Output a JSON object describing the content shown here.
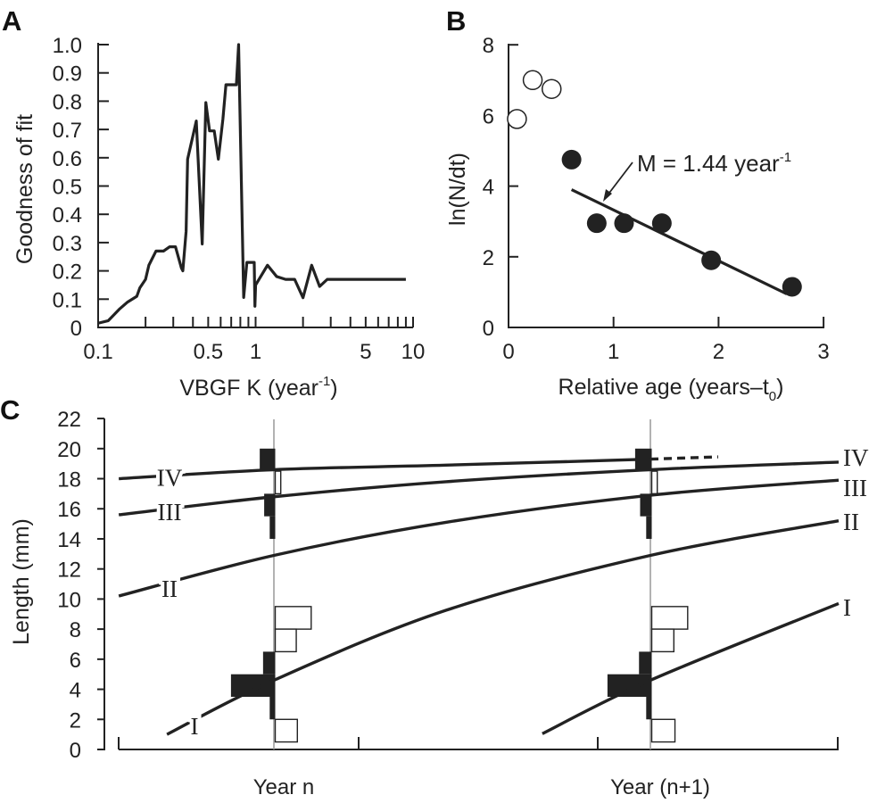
{
  "panel_labels": [
    "A",
    "B",
    "C"
  ],
  "chart_data": [
    {
      "panel": "A",
      "type": "line",
      "xlabel": "VBGF K (year",
      "xlabel_sup": "-1",
      "xlabel_end": ")",
      "ylabel": "Goodness of fit",
      "xscale": "log",
      "xlim": [
        0.1,
        10
      ],
      "ylim": [
        0,
        1.0
      ],
      "xtick_labels": [
        "0.1",
        "0.5",
        "1",
        "5",
        "10"
      ],
      "xtick_values": [
        0.1,
        0.5,
        1,
        5,
        10
      ],
      "ytick_labels": [
        "0",
        "0.1",
        "0.2",
        "0.3",
        "0.4",
        "0.5",
        "0.6",
        "0.7",
        "0.8",
        "0.9",
        "1.0"
      ],
      "ytick_values": [
        0,
        0.1,
        0.2,
        0.3,
        0.4,
        0.5,
        0.6,
        0.7,
        0.8,
        0.9,
        1.0
      ],
      "grid": false,
      "line_color": "#222222",
      "points": [
        [
          0.1,
          0.015
        ],
        [
          0.116,
          0.024
        ],
        [
          0.136,
          0.064
        ],
        [
          0.154,
          0.09
        ],
        [
          0.176,
          0.11
        ],
        [
          0.184,
          0.14
        ],
        [
          0.2,
          0.17
        ],
        [
          0.21,
          0.22
        ],
        [
          0.233,
          0.27
        ],
        [
          0.26,
          0.27
        ],
        [
          0.284,
          0.285
        ],
        [
          0.31,
          0.285
        ],
        [
          0.338,
          0.21
        ],
        [
          0.345,
          0.2
        ],
        [
          0.362,
          0.34
        ],
        [
          0.37,
          0.595
        ],
        [
          0.42,
          0.73
        ],
        [
          0.458,
          0.295
        ],
        [
          0.483,
          0.795
        ],
        [
          0.51,
          0.695
        ],
        [
          0.546,
          0.695
        ],
        [
          0.58,
          0.595
        ],
        [
          0.62,
          0.737
        ],
        [
          0.648,
          0.858
        ],
        [
          0.755,
          0.858
        ],
        [
          0.78,
          1.0
        ],
        [
          0.84,
          0.106
        ],
        [
          0.88,
          0.23
        ],
        [
          0.98,
          0.23
        ],
        [
          0.99,
          0.075
        ],
        [
          1.0,
          0.15
        ],
        [
          1.19,
          0.22
        ],
        [
          1.36,
          0.18
        ],
        [
          1.55,
          0.17
        ],
        [
          1.77,
          0.17
        ],
        [
          2.0,
          0.105
        ],
        [
          2.27,
          0.22
        ],
        [
          2.55,
          0.145
        ],
        [
          2.85,
          0.17
        ],
        [
          9.0,
          0.17
        ]
      ]
    },
    {
      "panel": "B",
      "type": "scatter",
      "xlabel": "Relative age (years–t",
      "xlabel_sub": "0",
      "xlabel_end": ")",
      "ylabel": "ln(N/dt)",
      "xlim": [
        0,
        3
      ],
      "ylim": [
        0,
        8
      ],
      "xtick_labels": [
        "0",
        "1",
        "2",
        "3"
      ],
      "xtick_values": [
        0,
        1,
        2,
        3
      ],
      "ytick_labels": [
        "0",
        "2",
        "4",
        "6",
        "8"
      ],
      "ytick_values": [
        0,
        2,
        4,
        6,
        8
      ],
      "grid": false,
      "open_points": [
        [
          0.08,
          5.9
        ],
        [
          0.23,
          7.0
        ],
        [
          0.41,
          6.75
        ]
      ],
      "filled_points": [
        [
          0.6,
          4.75
        ],
        [
          0.84,
          2.95
        ],
        [
          1.1,
          2.95
        ],
        [
          1.46,
          2.95
        ],
        [
          1.93,
          1.9
        ],
        [
          2.7,
          1.15
        ]
      ],
      "regression_line": [
        [
          0.6,
          3.9
        ],
        [
          2.65,
          0.95
        ]
      ],
      "annotation": "M = 1.44 year",
      "annotation_sup": "-1"
    },
    {
      "panel": "C",
      "type": "line",
      "ylabel": "Length (mm)",
      "ylim": [
        0,
        22
      ],
      "ytick_labels": [
        "0",
        "2",
        "4",
        "6",
        "8",
        "10",
        "12",
        "14",
        "16",
        "18",
        "20",
        "22"
      ],
      "ytick_values": [
        0,
        2,
        4,
        6,
        8,
        10,
        12,
        14,
        16,
        18,
        20,
        22
      ],
      "x_category_labels": [
        "Year n",
        "Year (n+1)"
      ],
      "grid": false,
      "curves": [
        {
          "left_label": "IV",
          "right_label": "",
          "points": [
            [
              -0.412,
              18.0
            ],
            [
              0,
              18.6
            ],
            [
              0.457,
              18.9
            ],
            [
              1.0,
              19.3
            ]
          ],
          "dashed_extension": [
            [
              1.0,
              19.3
            ],
            [
              1.18,
              19.45
            ]
          ]
        },
        {
          "left_label": "III",
          "right_label": "IV",
          "points": [
            [
              -0.412,
              15.6
            ],
            [
              0,
              16.8
            ],
            [
              0.457,
              17.8
            ],
            [
              1.0,
              18.6
            ],
            [
              1.5,
              19.1
            ]
          ]
        },
        {
          "left_label": "II",
          "right_label": "III",
          "points": [
            [
              -0.412,
              10.2
            ],
            [
              0,
              12.9
            ],
            [
              0.457,
              15.1
            ],
            [
              1.0,
              16.9
            ],
            [
              1.5,
              17.9
            ]
          ]
        },
        {
          "left_label": "I",
          "right_label": "II",
          "points": [
            [
              -0.284,
              1.0
            ],
            [
              0,
              4.6
            ],
            [
              0.457,
              9.25
            ],
            [
              1.0,
              12.9
            ],
            [
              1.5,
              15.2
            ]
          ]
        },
        {
          "left_label": "",
          "right_label": "I",
          "points": [
            [
              0.713,
              1.05
            ],
            [
              1.0,
              4.6
            ],
            [
              1.5,
              9.7
            ]
          ]
        }
      ],
      "histograms": [
        {
          "sample": "Year n",
          "filled": [
            [
              18.5,
              20,
              2.8
            ],
            [
              15.5,
              17,
              2
            ],
            [
              14,
              15.5,
              1
            ],
            [
              5,
              6.5,
              2.2
            ],
            [
              3.5,
              5,
              8
            ],
            [
              2,
              3.5,
              1
            ]
          ],
          "open": [
            [
              17,
              18.5,
              1
            ],
            [
              8,
              9.5,
              6.5
            ],
            [
              6.5,
              8,
              3.8
            ],
            [
              0.5,
              2,
              4
            ]
          ]
        },
        {
          "sample": "Year (n+1)",
          "filled": [
            [
              18.5,
              20,
              3
            ],
            [
              15.5,
              17,
              2.1
            ],
            [
              14,
              15.5,
              1
            ],
            [
              5,
              6.5,
              2.3
            ],
            [
              3.5,
              5,
              8
            ],
            [
              2,
              3.5,
              1
            ]
          ],
          "open": [
            [
              17,
              18.5,
              1
            ],
            [
              8,
              9.5,
              6.5
            ],
            [
              6.5,
              8,
              4
            ],
            [
              0.5,
              2,
              4.2
            ]
          ]
        }
      ],
      "sample_line_color": "#999999",
      "filled_color": "#222222"
    }
  ]
}
